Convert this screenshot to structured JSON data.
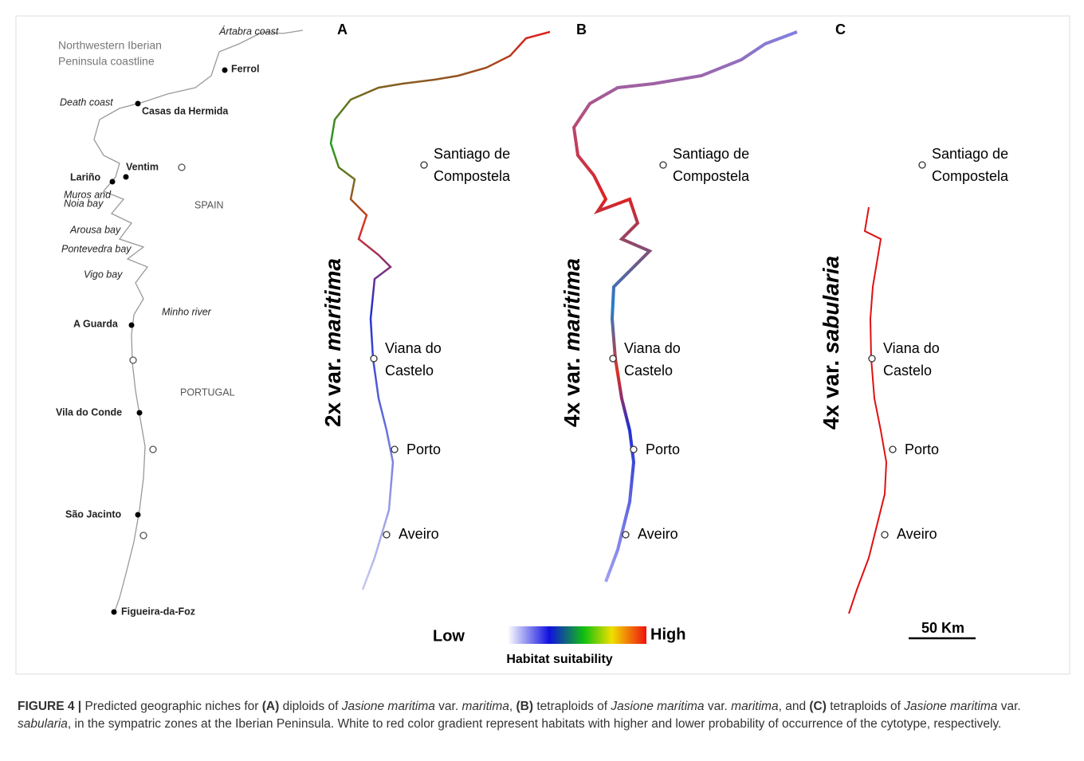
{
  "left_map": {
    "title_lines": [
      "Northwestern Iberian",
      "Peninsula coastline"
    ],
    "labels": [
      {
        "lines": [
          "Ártabra coast"
        ],
        "style": "italic"
      },
      {
        "lines": [
          "Ferrol"
        ],
        "style": "bold"
      },
      {
        "lines": [
          "Death coast"
        ],
        "style": "italic"
      },
      {
        "lines": [
          "Casas da Hermida"
        ],
        "style": "bold"
      },
      {
        "lines": [
          "Ventim"
        ],
        "style": "bold"
      },
      {
        "lines": [
          "Lariño"
        ],
        "style": "bold"
      },
      {
        "lines": [
          "Muros and",
          "Noia bay"
        ],
        "style": "italic"
      },
      {
        "lines": [
          "SPAIN"
        ],
        "style": "normal"
      },
      {
        "lines": [
          "Arousa bay"
        ],
        "style": "italic"
      },
      {
        "lines": [
          "Pontevedra bay"
        ],
        "style": "italic"
      },
      {
        "lines": [
          "Vigo bay"
        ],
        "style": "italic"
      },
      {
        "lines": [
          "Minho river"
        ],
        "style": "italic"
      },
      {
        "lines": [
          "A Guarda"
        ],
        "style": "bold"
      },
      {
        "lines": [
          "PORTUGAL"
        ],
        "style": "normal"
      },
      {
        "lines": [
          "Vila do Conde"
        ],
        "style": "bold"
      },
      {
        "lines": [
          "São Jacinto"
        ],
        "style": "bold"
      },
      {
        "lines": [
          "Figueira-da-Foz"
        ],
        "style": "bold"
      }
    ]
  },
  "panels": [
    {
      "label": "A",
      "title": {
        "prefix": "2x var.",
        "name": "maritima"
      },
      "cities": [
        {
          "lines": [
            "Santiago de",
            "Compostela"
          ]
        },
        {
          "lines": [
            "Viana do",
            "Castelo"
          ]
        },
        {
          "lines": [
            "Porto"
          ]
        },
        {
          "lines": [
            "Aveiro"
          ]
        }
      ]
    },
    {
      "label": "B",
      "title": {
        "prefix": "4x var.",
        "name": "maritima"
      },
      "cities": [
        {
          "lines": [
            "Santiago de",
            "Compostela"
          ]
        },
        {
          "lines": [
            "Viana do",
            "Castelo"
          ]
        },
        {
          "lines": [
            "Porto"
          ]
        },
        {
          "lines": [
            "Aveiro"
          ]
        }
      ]
    },
    {
      "label": "C",
      "title": {
        "prefix": "4x var.",
        "name": "sabularia"
      },
      "cities": [
        {
          "lines": [
            "Santiago de",
            "Compostela"
          ]
        },
        {
          "lines": [
            "Viana do",
            "Castelo"
          ]
        },
        {
          "lines": [
            "Porto"
          ]
        },
        {
          "lines": [
            "Aveiro"
          ]
        }
      ]
    }
  ],
  "legend": {
    "low": "Low",
    "high": "High",
    "title": "Habitat suitability"
  },
  "scale_bar": "50 Km",
  "caption": [
    {
      "text": "FIGURE 4 |",
      "style": "bold"
    },
    {
      "text": " Predicted geographic niches for ",
      "style": "normal"
    },
    {
      "text": "(A)",
      "style": "bold"
    },
    {
      "text": " diploids of ",
      "style": "normal"
    },
    {
      "text": "Jasione maritima",
      "style": "italic"
    },
    {
      "text": " var. ",
      "style": "normal"
    },
    {
      "text": "maritima",
      "style": "italic"
    },
    {
      "text": ", ",
      "style": "normal"
    },
    {
      "text": "(B)",
      "style": "bold"
    },
    {
      "text": " tetraploids of ",
      "style": "normal"
    },
    {
      "text": "Jasione maritima",
      "style": "italic"
    },
    {
      "text": " var. ",
      "style": "normal"
    },
    {
      "text": "maritima",
      "style": "italic"
    },
    {
      "text": ", and ",
      "style": "normal"
    },
    {
      "text": "(C)",
      "style": "bold"
    },
    {
      "text": " tetraploids of ",
      "style": "normal"
    },
    {
      "text": "Jasione maritima",
      "style": "italic"
    },
    {
      "text": " var. ",
      "style": "normal"
    },
    {
      "text": "sabularia",
      "style": "italic"
    },
    {
      "text": ", in the sympatric zones at the Iberian Peninsula. White to red color gradient represent habitats with higher and lower probability of occurrence of the cytotype, respectively.",
      "style": "normal"
    }
  ]
}
